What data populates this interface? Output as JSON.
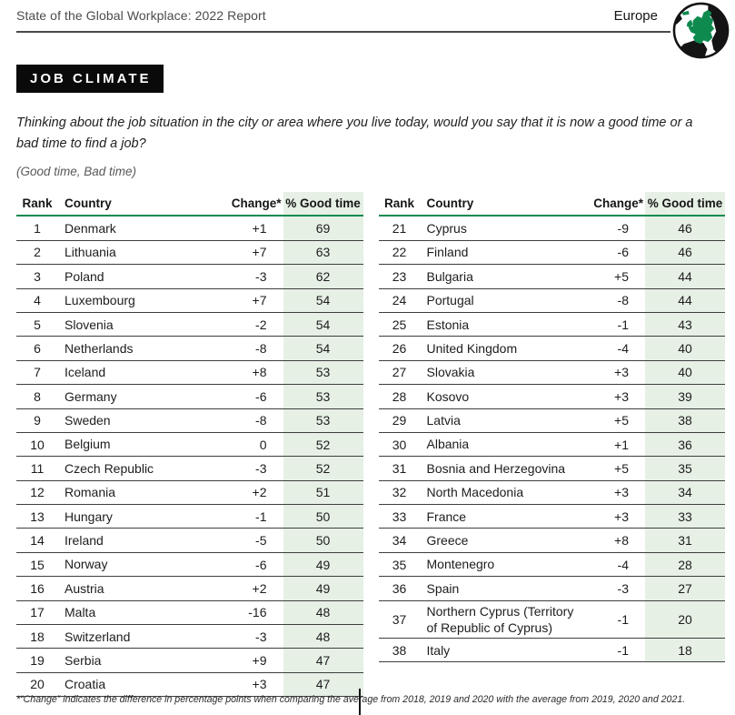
{
  "header": {
    "title": "State of the Global Workplace: 2022 Report",
    "region": "Europe"
  },
  "badge": "JOB CLIMATE",
  "question": "Thinking about the job situation in the city or area where you live today, would you say that it is now a good time or a bad time to find a job?",
  "question_sub": "(Good time, Bad time)",
  "columns": {
    "rank": "Rank",
    "country": "Country",
    "change": "Change*",
    "good": "% Good time"
  },
  "tables": {
    "left": {
      "rows": [
        {
          "rank": "1",
          "country": "Denmark",
          "change": "+1",
          "good": "69"
        },
        {
          "rank": "2",
          "country": "Lithuania",
          "change": "+7",
          "good": "63"
        },
        {
          "rank": "3",
          "country": "Poland",
          "change": "-3",
          "good": "62"
        },
        {
          "rank": "4",
          "country": "Luxembourg",
          "change": "+7",
          "good": "54"
        },
        {
          "rank": "5",
          "country": "Slovenia",
          "change": "-2",
          "good": "54"
        },
        {
          "rank": "6",
          "country": "Netherlands",
          "change": "-8",
          "good": "54"
        },
        {
          "rank": "7",
          "country": "Iceland",
          "change": "+8",
          "good": "53"
        },
        {
          "rank": "8",
          "country": "Germany",
          "change": "-6",
          "good": "53"
        },
        {
          "rank": "9",
          "country": "Sweden",
          "change": "-8",
          "good": "53"
        },
        {
          "rank": "10",
          "country": "Belgium",
          "change": "0",
          "good": "52"
        },
        {
          "rank": "11",
          "country": "Czech Republic",
          "change": "-3",
          "good": "52"
        },
        {
          "rank": "12",
          "country": "Romania",
          "change": "+2",
          "good": "51"
        },
        {
          "rank": "13",
          "country": "Hungary",
          "change": "-1",
          "good": "50"
        },
        {
          "rank": "14",
          "country": "Ireland",
          "change": "-5",
          "good": "50"
        },
        {
          "rank": "15",
          "country": "Norway",
          "change": "-6",
          "good": "49"
        },
        {
          "rank": "16",
          "country": "Austria",
          "change": "+2",
          "good": "49"
        },
        {
          "rank": "17",
          "country": "Malta",
          "change": "-16",
          "good": "48"
        },
        {
          "rank": "18",
          "country": "Switzerland",
          "change": "-3",
          "good": "48"
        },
        {
          "rank": "19",
          "country": "Serbia",
          "change": "+9",
          "good": "47"
        },
        {
          "rank": "20",
          "country": "Croatia",
          "change": "+3",
          "good": "47"
        }
      ]
    },
    "right": {
      "rows": [
        {
          "rank": "21",
          "country": "Cyprus",
          "change": "-9",
          "good": "46"
        },
        {
          "rank": "22",
          "country": "Finland",
          "change": "-6",
          "good": "46"
        },
        {
          "rank": "23",
          "country": "Bulgaria",
          "change": "+5",
          "good": "44"
        },
        {
          "rank": "24",
          "country": "Portugal",
          "change": "-8",
          "good": "44"
        },
        {
          "rank": "25",
          "country": "Estonia",
          "change": "-1",
          "good": "43"
        },
        {
          "rank": "26",
          "country": "United Kingdom",
          "change": "-4",
          "good": "40"
        },
        {
          "rank": "27",
          "country": "Slovakia",
          "change": "+3",
          "good": "40"
        },
        {
          "rank": "28",
          "country": "Kosovo",
          "change": "+3",
          "good": "39"
        },
        {
          "rank": "29",
          "country": "Latvia",
          "change": "+5",
          "good": "38"
        },
        {
          "rank": "30",
          "country": "Albania",
          "change": "+1",
          "good": "36"
        },
        {
          "rank": "31",
          "country": "Bosnia and Herzegovina",
          "change": "+5",
          "good": "35"
        },
        {
          "rank": "32",
          "country": "North Macedonia",
          "change": "+3",
          "good": "34"
        },
        {
          "rank": "33",
          "country": "France",
          "change": "+3",
          "good": "33"
        },
        {
          "rank": "34",
          "country": "Greece",
          "change": "+8",
          "good": "31"
        },
        {
          "rank": "35",
          "country": "Montenegro",
          "change": "-4",
          "good": "28"
        },
        {
          "rank": "36",
          "country": "Spain",
          "change": "-3",
          "good": "27"
        },
        {
          "rank": "37",
          "country": "Northern Cyprus (Territory of Republic of Cyprus)",
          "change": "-1",
          "good": "20"
        },
        {
          "rank": "38",
          "country": "Italy",
          "change": "-1",
          "good": "18"
        }
      ]
    }
  },
  "footnote": "*“Change” indicates the difference in percentage points when comparing the average from 2018, 2019 and 2020 with the average from 2019, 2020 and 2021.",
  "colors": {
    "accent_green": "#0e8a4f",
    "light_green_column": "#e6f0e5",
    "badge_background": "#0a0a0a",
    "globe_land_green": "#0e8a4f"
  }
}
